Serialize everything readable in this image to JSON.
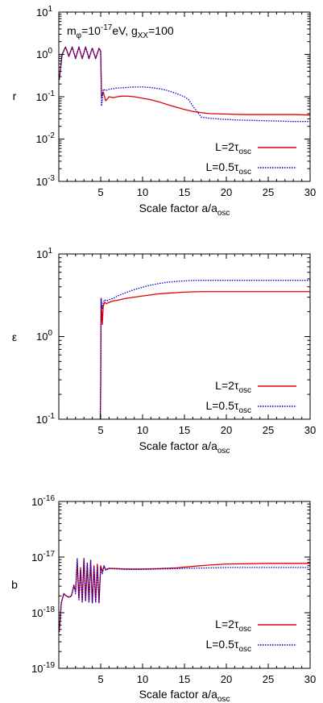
{
  "colors": {
    "red": "#e00000",
    "blue": "#0000d0",
    "frame": "#000000"
  },
  "chart_data": [
    {
      "id": "r",
      "type": "line",
      "ylabel": "r",
      "xlabel": "Scale factor a/a",
      "xlabel_sub": "osc",
      "annotation": {
        "m": "m",
        "m_sub": "φ",
        "m_eq": "=10",
        "m_exp": "-17",
        "m_unit": "eV, g",
        "g_sub": "XX",
        "g_val": "=100"
      },
      "y_scale": "log",
      "xlim": [
        0,
        30
      ],
      "ylim": [
        0.001,
        10
      ],
      "x_ticks": [
        "5",
        "10",
        "15",
        "20",
        "25",
        "30"
      ],
      "y_ticks": [
        {
          "base": "10",
          "exp": "1"
        },
        {
          "base": "10",
          "exp": "0"
        },
        {
          "base": "10",
          "exp": "-1"
        },
        {
          "base": "10",
          "exp": "-2"
        },
        {
          "base": "10",
          "exp": "-3"
        }
      ],
      "legend": [
        {
          "label": "L=2τ",
          "sub": "osc",
          "color": "#e00000",
          "dash": "solid"
        },
        {
          "label": "L=0.5τ",
          "sub": "osc",
          "color": "#0000d0",
          "dash": "dotted"
        }
      ],
      "series": [
        {
          "name": "L=2τosc",
          "x": [
            0.05,
            0.4,
            0.8,
            1.2,
            1.6,
            2.0,
            2.4,
            2.8,
            3.2,
            3.6,
            4.0,
            4.4,
            4.8,
            5.0,
            5.1,
            5.3,
            5.6,
            6.0,
            6.5,
            7.0,
            7.5,
            8.0,
            9.0,
            10.0,
            11.0,
            12.0,
            13.0,
            14.0,
            15.0,
            16.0,
            17.0,
            18.0,
            20.0,
            22.0,
            25.0,
            28.0,
            30.0
          ],
          "y": [
            0.25,
            1.0,
            1.5,
            0.9,
            1.5,
            0.8,
            1.5,
            0.8,
            1.5,
            0.8,
            1.4,
            0.8,
            1.4,
            1.2,
            0.1,
            0.13,
            0.08,
            0.1,
            0.095,
            0.1,
            0.103,
            0.104,
            0.1,
            0.092,
            0.085,
            0.075,
            0.065,
            0.057,
            0.05,
            0.045,
            0.042,
            0.04,
            0.039,
            0.038,
            0.038,
            0.038,
            0.037
          ]
        },
        {
          "name": "L=0.5τosc",
          "x": [
            0.05,
            0.4,
            0.8,
            1.2,
            1.6,
            2.0,
            2.4,
            2.8,
            3.2,
            3.6,
            4.0,
            4.4,
            4.8,
            5.0,
            5.1,
            5.3,
            5.6,
            6.0,
            7.0,
            8.0,
            9.0,
            10.0,
            11.0,
            12.0,
            13.0,
            14.0,
            15.0,
            15.5,
            16.0,
            16.5,
            17.0,
            18.0,
            20.0,
            22.0,
            25.0,
            28.0,
            30.0
          ],
          "y": [
            0.25,
            1.0,
            1.5,
            0.9,
            1.5,
            0.8,
            1.5,
            0.8,
            1.5,
            0.8,
            1.4,
            0.8,
            1.4,
            1.2,
            0.06,
            0.15,
            0.14,
            0.15,
            0.16,
            0.165,
            0.17,
            0.17,
            0.165,
            0.155,
            0.14,
            0.12,
            0.1,
            0.085,
            0.06,
            0.045,
            0.033,
            0.031,
            0.029,
            0.028,
            0.027,
            0.026,
            0.026
          ]
        }
      ]
    },
    {
      "id": "eps",
      "type": "line",
      "ylabel": "ε",
      "xlabel": "Scale factor a/a",
      "xlabel_sub": "osc",
      "y_scale": "log",
      "xlim": [
        0,
        30
      ],
      "ylim": [
        0.1,
        10
      ],
      "x_ticks": [
        "5",
        "10",
        "15",
        "20",
        "25",
        "30"
      ],
      "y_ticks": [
        {
          "base": "10",
          "exp": "1"
        },
        {
          "base": "10",
          "exp": "0"
        },
        {
          "base": "10",
          "exp": "-1"
        }
      ],
      "legend": [
        {
          "label": "L=2τ",
          "sub": "osc",
          "color": "#e00000",
          "dash": "solid"
        },
        {
          "label": "L=0.5τ",
          "sub": "osc",
          "color": "#0000d0",
          "dash": "dotted"
        }
      ],
      "series": [
        {
          "name": "L=2τosc",
          "x": [
            4.95,
            5.0,
            5.05,
            5.1,
            5.2,
            5.3,
            5.4,
            5.5,
            5.7,
            6.0,
            6.5,
            7.0,
            8.0,
            9.0,
            10.0,
            11.0,
            12.0,
            13.0,
            14.0,
            15.0,
            16.0,
            17.0,
            18.0,
            20.0,
            25.0,
            30.0
          ],
          "y": [
            0.1,
            0.25,
            2.9,
            2.2,
            1.4,
            2.3,
            2.5,
            2.6,
            2.5,
            2.6,
            2.7,
            2.75,
            2.9,
            3.0,
            3.1,
            3.2,
            3.3,
            3.35,
            3.4,
            3.45,
            3.48,
            3.5,
            3.5,
            3.5,
            3.5,
            3.5
          ]
        },
        {
          "name": "L=0.5τosc",
          "x": [
            4.95,
            5.0,
            5.05,
            5.1,
            5.2,
            5.3,
            5.4,
            5.5,
            5.7,
            6.0,
            6.5,
            7.0,
            8.0,
            9.0,
            10.0,
            11.0,
            12.0,
            13.0,
            14.0,
            15.0,
            16.0,
            17.0,
            18.0,
            20.0,
            25.0,
            30.0
          ],
          "y": [
            0.1,
            0.3,
            2.9,
            2.4,
            2.2,
            2.6,
            2.7,
            2.8,
            2.7,
            2.8,
            2.9,
            3.1,
            3.4,
            3.7,
            3.95,
            4.2,
            4.4,
            4.55,
            4.65,
            4.72,
            4.78,
            4.8,
            4.8,
            4.8,
            4.8,
            4.8
          ]
        }
      ]
    },
    {
      "id": "b",
      "type": "line",
      "ylabel": "b",
      "xlabel": "Scale factor a/a",
      "xlabel_sub": "osc",
      "y_scale": "log",
      "xlim": [
        0,
        30
      ],
      "ylim": [
        1e-19,
        1e-16
      ],
      "x_ticks": [
        "5",
        "10",
        "15",
        "20",
        "25",
        "30"
      ],
      "y_ticks": [
        {
          "base": "10",
          "exp": "-16"
        },
        {
          "base": "10",
          "exp": "-17"
        },
        {
          "base": "10",
          "exp": "-18"
        },
        {
          "base": "10",
          "exp": "-19"
        }
      ],
      "legend": [
        {
          "label": "L=2τ",
          "sub": "osc",
          "color": "#e00000",
          "dash": "solid"
        },
        {
          "label": "L=0.5τ",
          "sub": "osc",
          "color": "#0000d0",
          "dash": "dotted"
        }
      ],
      "series": [
        {
          "name": "L=2τosc",
          "x": [
            0.05,
            0.3,
            0.6,
            0.9,
            1.2,
            1.5,
            1.8,
            2.0,
            2.2,
            2.4,
            2.6,
            2.8,
            3.0,
            3.2,
            3.4,
            3.6,
            3.8,
            4.0,
            4.2,
            4.4,
            4.6,
            4.8,
            5.0,
            5.2,
            5.4,
            5.6,
            6.0,
            7.0,
            8.0,
            10.0,
            12.0,
            14.0,
            16.0,
            18.0,
            20.0,
            25.0,
            30.0
          ],
          "y": [
            4.5e-19,
            1.5e-18,
            2.2e-18,
            2e-18,
            1.9e-18,
            2e-18,
            3e-18,
            2.5e-18,
            8e-18,
            1.8e-18,
            6.5e-18,
            1.6e-18,
            9.5e-18,
            1.7e-18,
            7.5e-18,
            1.6e-18,
            8.5e-18,
            1.5e-18,
            7e-18,
            1.6e-18,
            7.5e-18,
            1.5e-18,
            7e-18,
            5.5e-18,
            6.8e-18,
            6e-18,
            6.3e-18,
            6.2e-18,
            6.1e-18,
            6.1e-18,
            6.2e-18,
            6.4e-18,
            6.8e-18,
            7.2e-18,
            7.5e-18,
            7.7e-18,
            7.7e-18
          ]
        },
        {
          "name": "L=0.5τosc",
          "x": [
            0.05,
            0.3,
            0.6,
            0.9,
            1.2,
            1.5,
            1.8,
            2.0,
            2.2,
            2.4,
            2.6,
            2.8,
            3.0,
            3.2,
            3.4,
            3.6,
            3.8,
            4.0,
            4.2,
            4.4,
            4.6,
            4.8,
            5.0,
            5.2,
            5.4,
            5.6,
            6.0,
            7.0,
            8.0,
            10.0,
            12.0,
            14.0,
            16.0,
            18.0,
            20.0,
            25.0,
            30.0
          ],
          "y": [
            4.5e-19,
            1.5e-18,
            2.2e-18,
            2e-18,
            1.9e-18,
            2e-18,
            3.2e-18,
            2.2e-18,
            9.5e-18,
            1.7e-18,
            6e-18,
            1.5e-18,
            9e-18,
            1.6e-18,
            8e-18,
            1.5e-18,
            9e-18,
            1.5e-18,
            6.5e-18,
            1.5e-18,
            7e-18,
            1.5e-18,
            6.5e-18,
            5e-18,
            7e-18,
            5.8e-18,
            6.2e-18,
            6.1e-18,
            6e-18,
            6e-18,
            6.1e-18,
            6.2e-18,
            6.3e-18,
            6.4e-18,
            6.5e-18,
            6.5e-18,
            6.5e-18
          ]
        }
      ]
    }
  ]
}
